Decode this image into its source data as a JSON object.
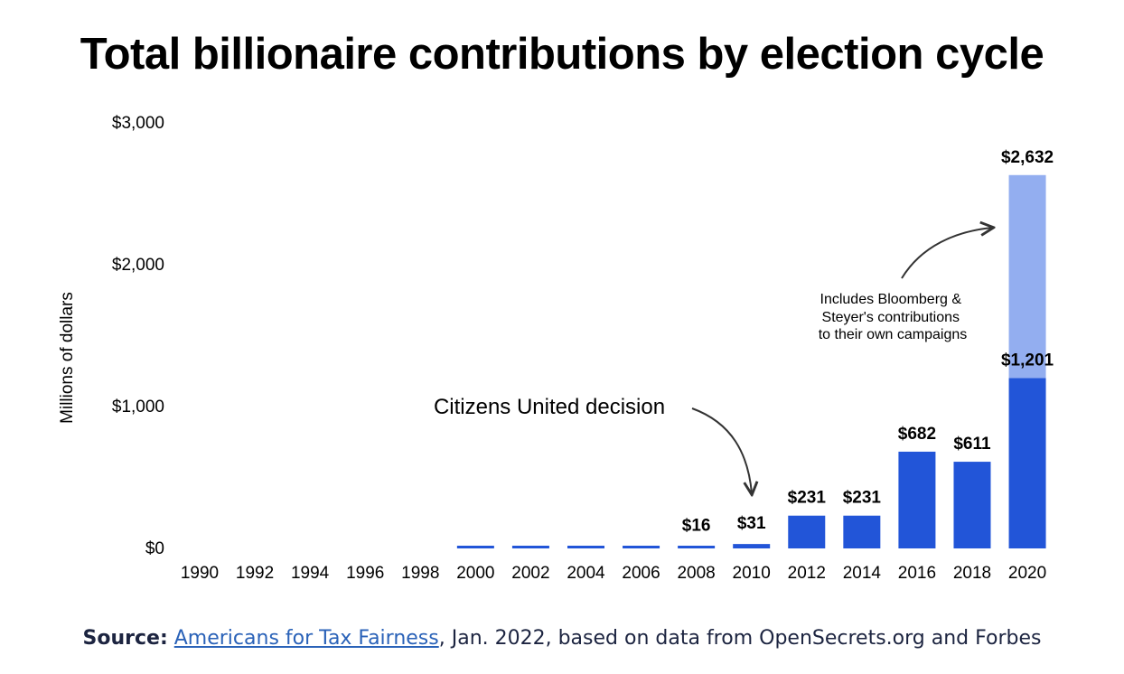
{
  "chart_data": {
    "type": "bar",
    "title": "Total billionaire contributions by election cycle",
    "ylabel": "Millions of dollars",
    "ylim": [
      0,
      3000
    ],
    "yticks": [
      0,
      1000,
      2000,
      3000
    ],
    "ytick_labels": [
      "$0",
      "$1,000",
      "$2,000",
      "$3,000"
    ],
    "categories": [
      "1990",
      "1992",
      "1994",
      "1996",
      "1998",
      "2000",
      "2002",
      "2004",
      "2006",
      "2008",
      "2010",
      "2012",
      "2014",
      "2016",
      "2018",
      "2020"
    ],
    "series": [
      {
        "values": [
          0,
          0,
          0,
          0,
          0,
          12,
          12,
          12,
          12,
          16,
          31,
          231,
          231,
          682,
          611,
          1201
        ],
        "color": "#2255d8"
      },
      {
        "values": [
          0,
          0,
          0,
          0,
          0,
          0,
          0,
          0,
          0,
          0,
          0,
          0,
          0,
          0,
          0,
          1431
        ],
        "color": "#93aef0"
      }
    ],
    "data_labels": [
      {
        "category": "2008",
        "text": "$16",
        "value": 16
      },
      {
        "category": "2010",
        "text": "$31",
        "value": 31
      },
      {
        "category": "2012",
        "text": "$231",
        "value": 231
      },
      {
        "category": "2014",
        "text": "$231",
        "value": 231
      },
      {
        "category": "2016",
        "text": "$682",
        "value": 682
      },
      {
        "category": "2018",
        "text": "$611",
        "value": 611
      },
      {
        "category": "2020",
        "text": "$1,201",
        "value": 1201
      },
      {
        "category": "2020",
        "text": "$2,632",
        "value": 2632
      }
    ],
    "annotations": [
      {
        "text": "Citizens United decision",
        "target": "2010"
      },
      {
        "lines": [
          "Includes Bloomberg &",
          "Steyer's contributions",
          "to their own campaigns"
        ],
        "target": "2020"
      }
    ],
    "grid": false,
    "legend": "none"
  },
  "source": {
    "prefix": "Source:",
    "link_text": "Americans for Tax Fairness",
    "suffix": ", Jan. 2022, based on data from OpenSecrets.org and Forbes"
  }
}
